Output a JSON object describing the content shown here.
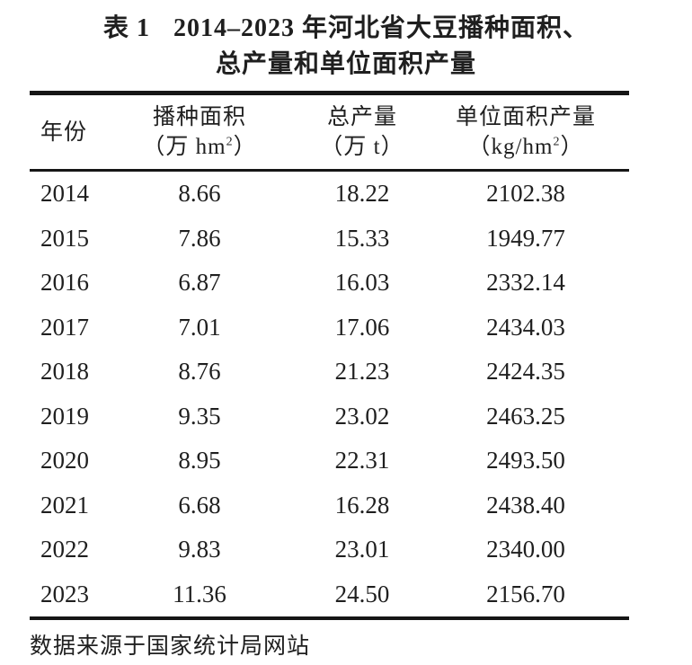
{
  "page": {
    "background": "#ffffff",
    "text_color": "#1f1f1f",
    "rule_color": "#161616"
  },
  "title": {
    "label": "表 1",
    "line1_rest": "2014–2023 年河北省大豆播种面积、",
    "line2": "总产量和单位面积产量"
  },
  "columns": [
    {
      "name": "年份",
      "unit_pre": "",
      "unit_sup": "",
      "unit_post": ""
    },
    {
      "name": "播种面积",
      "unit_pre": "（万 hm",
      "unit_sup": "2",
      "unit_post": "）"
    },
    {
      "name": "总产量",
      "unit_pre": "（万 t）",
      "unit_sup": "",
      "unit_post": ""
    },
    {
      "name": "单位面积产量",
      "unit_pre": "（kg/hm",
      "unit_sup": "2",
      "unit_post": "）"
    }
  ],
  "rows": [
    [
      "2014",
      "8.66",
      "18.22",
      "2102.38"
    ],
    [
      "2015",
      "7.86",
      "15.33",
      "1949.77"
    ],
    [
      "2016",
      "6.87",
      "16.03",
      "2332.14"
    ],
    [
      "2017",
      "7.01",
      "17.06",
      "2434.03"
    ],
    [
      "2018",
      "8.76",
      "21.23",
      "2424.35"
    ],
    [
      "2019",
      "9.35",
      "23.02",
      "2463.25"
    ],
    [
      "2020",
      "8.95",
      "22.31",
      "2493.50"
    ],
    [
      "2021",
      "6.68",
      "16.28",
      "2438.40"
    ],
    [
      "2022",
      "9.83",
      "23.01",
      "2340.00"
    ],
    [
      "2023",
      "11.36",
      "24.50",
      "2156.70"
    ]
  ],
  "footer": {
    "source_note": "数据来源于国家统计局网站"
  }
}
